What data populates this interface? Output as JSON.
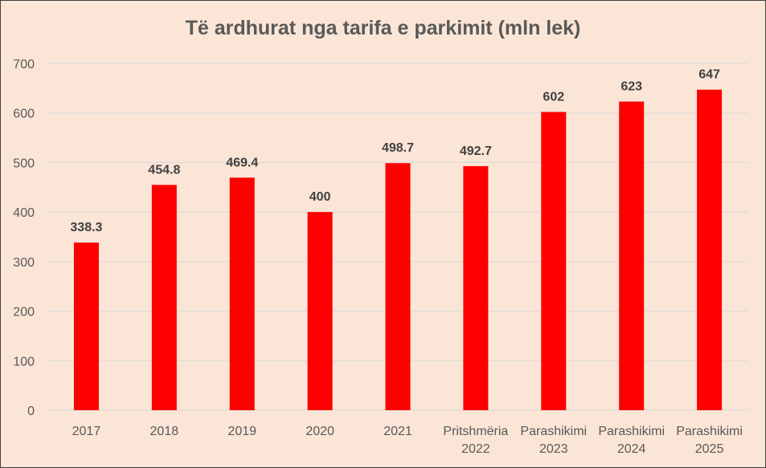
{
  "chart_data": {
    "type": "bar",
    "title": "Të ardhurat nga tarifa e parkimit (mln lek)",
    "xlabel": "",
    "ylabel": "",
    "categories": [
      [
        "2017"
      ],
      [
        "2018"
      ],
      [
        "2019"
      ],
      [
        "2020"
      ],
      [
        "2021"
      ],
      [
        "Pritshmëria",
        "2022"
      ],
      [
        "Parashikimi",
        "2023"
      ],
      [
        "Parashikimi",
        "2024"
      ],
      [
        "Parashikimi",
        "2025"
      ]
    ],
    "values": [
      338.3,
      454.8,
      469.4,
      400,
      498.7,
      492.7,
      602,
      623,
      647
    ],
    "data_labels": [
      "338.3",
      "454.8",
      "469.4",
      "400",
      "498.7",
      "492.7",
      "602",
      "623",
      "647"
    ],
    "ylim": [
      0,
      700
    ],
    "yticks": [
      0,
      100,
      200,
      300,
      400,
      500,
      600,
      700
    ],
    "grid": true,
    "legend": "none",
    "colors": {
      "bar": "#ff0000",
      "background": "#fbe5d6",
      "gridline": "#d9d9d9",
      "text": "#595959"
    }
  }
}
